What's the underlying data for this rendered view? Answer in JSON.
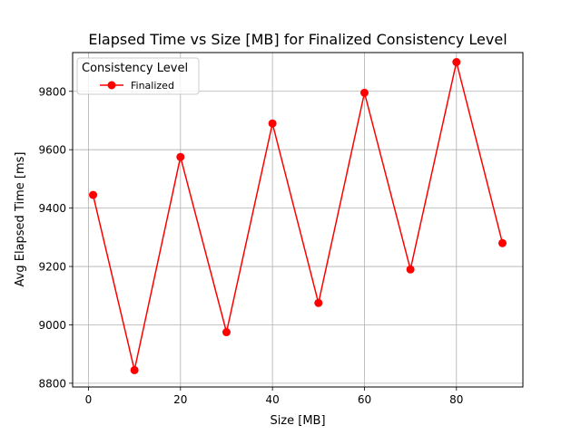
{
  "chart_data": {
    "type": "line",
    "title": "Elapsed Time vs Size [MB] for Finalized Consistency Level",
    "xlabel": "Size [MB]",
    "ylabel": "Avg Elapsed Time [ms]",
    "xlim": [
      -3.45,
      94.45
    ],
    "ylim": [
      8787.25,
      9932.75
    ],
    "x_ticks": [
      0,
      20,
      40,
      60,
      80
    ],
    "y_ticks": [
      8800,
      9000,
      9200,
      9400,
      9600,
      9800
    ],
    "grid": true,
    "legend": {
      "title": "Consistency Level",
      "placement": "top-left"
    },
    "series": [
      {
        "name": "Finalized",
        "color": "#ff0000",
        "marker": "circle",
        "x": [
          1,
          10,
          20,
          30,
          40,
          50,
          60,
          70,
          80,
          90
        ],
        "y": [
          9445,
          8845,
          9575,
          8975,
          9690,
          9075,
          9795,
          9190,
          9900,
          9280
        ]
      }
    ]
  }
}
